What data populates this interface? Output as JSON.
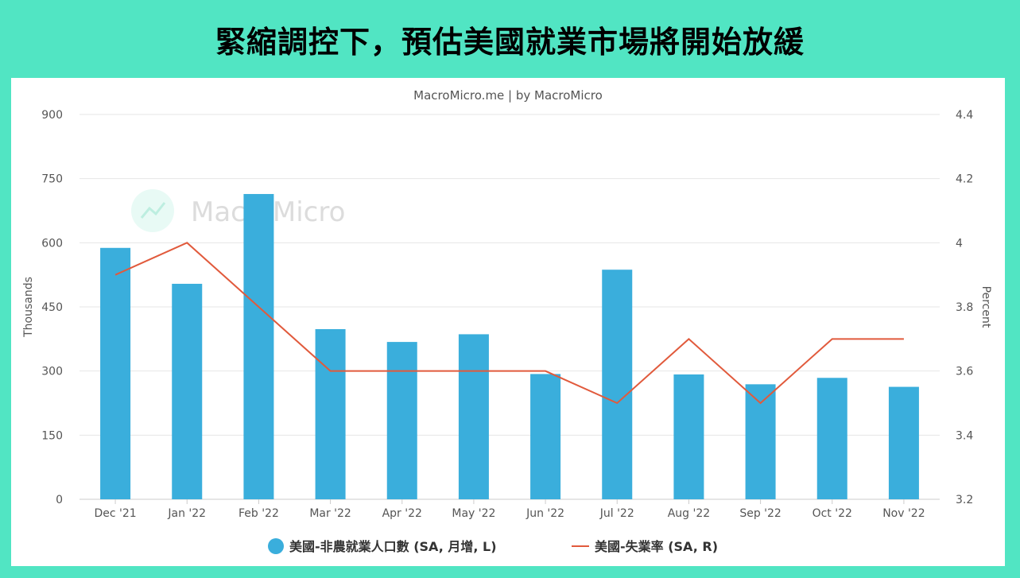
{
  "page": {
    "title": "緊縮調控下，預估美國就業市場將開始放緩"
  },
  "colors": {
    "background": "#51e5c3",
    "panel": "#ffffff",
    "bar": "#3aaedc",
    "line": "#e15a3c",
    "grid": "#e6e6e6",
    "text": "#555555",
    "watermark": "#dcdcdc"
  },
  "chart_data": {
    "type": "bar",
    "source_label": "MacroMicro.me | by MacroMicro",
    "watermark": "MacroMicro",
    "categories": [
      "Dec '21",
      "Jan '22",
      "Feb '22",
      "Mar '22",
      "Apr '22",
      "May '22",
      "Jun '22",
      "Jul '22",
      "Aug '22",
      "Sep '22",
      "Oct '22",
      "Nov '22"
    ],
    "series": [
      {
        "name": "美國-非農就業人口數 (SA, 月增, L)",
        "type": "bar",
        "axis": "left",
        "values": [
          588,
          504,
          714,
          398,
          368,
          386,
          293,
          537,
          292,
          269,
          284,
          263
        ]
      },
      {
        "name": "美國-失業率 (SA, R)",
        "type": "line",
        "axis": "right",
        "values": [
          3.9,
          4.0,
          3.8,
          3.6,
          3.6,
          3.6,
          3.6,
          3.5,
          3.7,
          3.5,
          3.7,
          3.7
        ]
      }
    ],
    "y_left": {
      "label": "Thousands",
      "range": [
        0,
        900
      ],
      "ticks": [
        "0",
        "150",
        "300",
        "450",
        "600",
        "750",
        "900"
      ]
    },
    "y_right": {
      "label": "Percent",
      "range": [
        3.2,
        4.4
      ],
      "ticks": [
        "3.2",
        "3.4",
        "3.6",
        "3.8",
        "4",
        "4.2",
        "4.4"
      ]
    },
    "grid": true,
    "legend_position": "bottom-center"
  }
}
